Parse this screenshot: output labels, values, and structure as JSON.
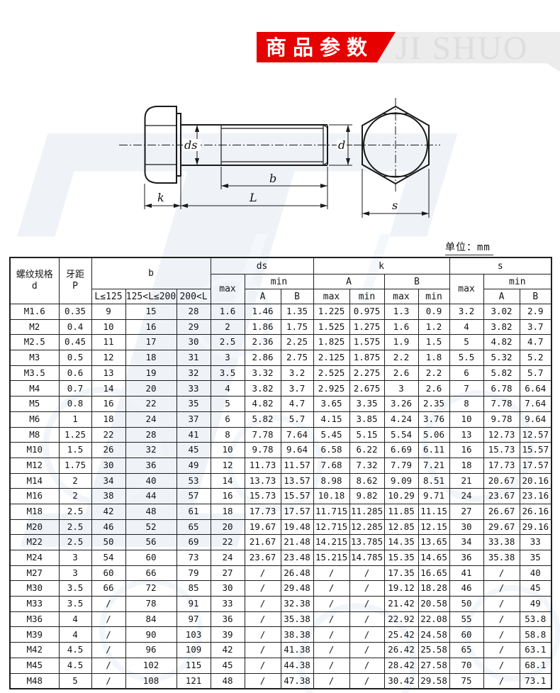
{
  "banner": {
    "title": "商品参数",
    "brand": "JI SHUO",
    "watermark_letter": "T",
    "accent_color": "#e60000"
  },
  "unit_label": "单位：mm",
  "diagram": {
    "labels": {
      "ds": "ds",
      "d": "d",
      "b": "b",
      "L": "L",
      "k": "k",
      "s": "s"
    }
  },
  "table": {
    "headers": {
      "spec_line1": "螺纹规格",
      "spec_line2": "d",
      "pitch_line1": "牙距",
      "pitch_line2": "P",
      "b": "b",
      "b_sub": [
        "L≤125",
        "125<L≤200",
        "200<L"
      ],
      "ds": "ds",
      "k": "k",
      "s": "s",
      "max": "max",
      "min": "min",
      "A": "A",
      "B": "B"
    },
    "rows": [
      [
        "M1.6",
        "0.35",
        "9",
        "15",
        "28",
        "1.6",
        "1.46",
        "1.35",
        "1.225",
        "0.975",
        "1.3",
        "0.9",
        "3.2",
        "3.02",
        "2.9"
      ],
      [
        "M2",
        "0.4",
        "10",
        "16",
        "29",
        "2",
        "1.86",
        "1.75",
        "1.525",
        "1.275",
        "1.6",
        "1.2",
        "4",
        "3.82",
        "3.7"
      ],
      [
        "M2.5",
        "0.45",
        "11",
        "17",
        "30",
        "2.5",
        "2.36",
        "2.25",
        "1.825",
        "1.575",
        "1.9",
        "1.5",
        "5",
        "4.82",
        "4.7"
      ],
      [
        "M3",
        "0.5",
        "12",
        "18",
        "31",
        "3",
        "2.86",
        "2.75",
        "2.125",
        "1.875",
        "2.2",
        "1.8",
        "5.5",
        "5.32",
        "5.2"
      ],
      [
        "M3.5",
        "0.6",
        "13",
        "19",
        "32",
        "3.5",
        "3.32",
        "3.2",
        "2.525",
        "2.275",
        "2.6",
        "2.2",
        "6",
        "5.82",
        "5.7"
      ],
      [
        "M4",
        "0.7",
        "14",
        "20",
        "33",
        "4",
        "3.82",
        "3.7",
        "2.925",
        "2.675",
        "3",
        "2.6",
        "7",
        "6.78",
        "6.64"
      ],
      [
        "M5",
        "0.8",
        "16",
        "22",
        "35",
        "5",
        "4.82",
        "4.7",
        "3.65",
        "3.35",
        "3.26",
        "2.35",
        "8",
        "7.78",
        "7.64"
      ],
      [
        "M6",
        "1",
        "18",
        "24",
        "37",
        "6",
        "5.82",
        "5.7",
        "4.15",
        "3.85",
        "4.24",
        "3.76",
        "10",
        "9.78",
        "9.64"
      ],
      [
        "M8",
        "1.25",
        "22",
        "28",
        "41",
        "8",
        "7.78",
        "7.64",
        "5.45",
        "5.15",
        "5.54",
        "5.06",
        "13",
        "12.73",
        "12.57"
      ],
      [
        "M10",
        "1.5",
        "26",
        "32",
        "45",
        "10",
        "9.78",
        "9.64",
        "6.58",
        "6.22",
        "6.69",
        "6.11",
        "16",
        "15.73",
        "15.57"
      ],
      [
        "M12",
        "1.75",
        "30",
        "36",
        "49",
        "12",
        "11.73",
        "11.57",
        "7.68",
        "7.32",
        "7.79",
        "7.21",
        "18",
        "17.73",
        "17.57"
      ],
      [
        "M14",
        "2",
        "34",
        "40",
        "53",
        "14",
        "13.73",
        "13.57",
        "8.98",
        "8.62",
        "9.09",
        "8.51",
        "21",
        "20.67",
        "20.16"
      ],
      [
        "M16",
        "2",
        "38",
        "44",
        "57",
        "16",
        "15.73",
        "15.57",
        "10.18",
        "9.82",
        "10.29",
        "9.71",
        "24",
        "23.67",
        "23.16"
      ],
      [
        "M18",
        "2.5",
        "42",
        "48",
        "61",
        "18",
        "17.73",
        "17.57",
        "11.715",
        "11.285",
        "11.85",
        "11.15",
        "27",
        "26.67",
        "26.16"
      ],
      [
        "M20",
        "2.5",
        "46",
        "52",
        "65",
        "20",
        "19.67",
        "19.48",
        "12.715",
        "12.285",
        "12.85",
        "12.15",
        "30",
        "29.67",
        "29.16"
      ],
      [
        "M22",
        "2.5",
        "50",
        "56",
        "69",
        "22",
        "21.67",
        "21.48",
        "14.215",
        "13.785",
        "14.35",
        "13.65",
        "34",
        "33.38",
        "33"
      ],
      [
        "M24",
        "3",
        "54",
        "60",
        "73",
        "24",
        "23.67",
        "23.48",
        "15.215",
        "14.785",
        "15.35",
        "14.65",
        "36",
        "35.38",
        "35"
      ],
      [
        "M27",
        "3",
        "60",
        "66",
        "79",
        "27",
        "/",
        "26.48",
        "/",
        "/",
        "17.35",
        "16.65",
        "41",
        "/",
        "40"
      ],
      [
        "M30",
        "3.5",
        "66",
        "72",
        "85",
        "30",
        "/",
        "29.48",
        "/",
        "/",
        "19.12",
        "18.28",
        "46",
        "/",
        "45"
      ],
      [
        "M33",
        "3.5",
        "/",
        "78",
        "91",
        "33",
        "/",
        "32.38",
        "/",
        "/",
        "21.42",
        "20.58",
        "50",
        "/",
        "49"
      ],
      [
        "M36",
        "4",
        "/",
        "84",
        "97",
        "36",
        "/",
        "35.38",
        "/",
        "/",
        "22.92",
        "22.08",
        "55",
        "/",
        "53.8"
      ],
      [
        "M39",
        "4",
        "/",
        "90",
        "103",
        "39",
        "/",
        "38.38",
        "/",
        "/",
        "25.42",
        "24.58",
        "60",
        "/",
        "58.8"
      ],
      [
        "M42",
        "4.5",
        "/",
        "96",
        "109",
        "42",
        "/",
        "41.38",
        "/",
        "/",
        "26.42",
        "25.58",
        "65",
        "/",
        "63.1"
      ],
      [
        "M45",
        "4.5",
        "/",
        "102",
        "115",
        "45",
        "/",
        "44.38",
        "/",
        "/",
        "28.42",
        "27.58",
        "70",
        "/",
        "68.1"
      ],
      [
        "M48",
        "5",
        "/",
        "108",
        "121",
        "48",
        "/",
        "47.38",
        "/",
        "/",
        "30.42",
        "29.58",
        "75",
        "/",
        "73.1"
      ]
    ]
  }
}
